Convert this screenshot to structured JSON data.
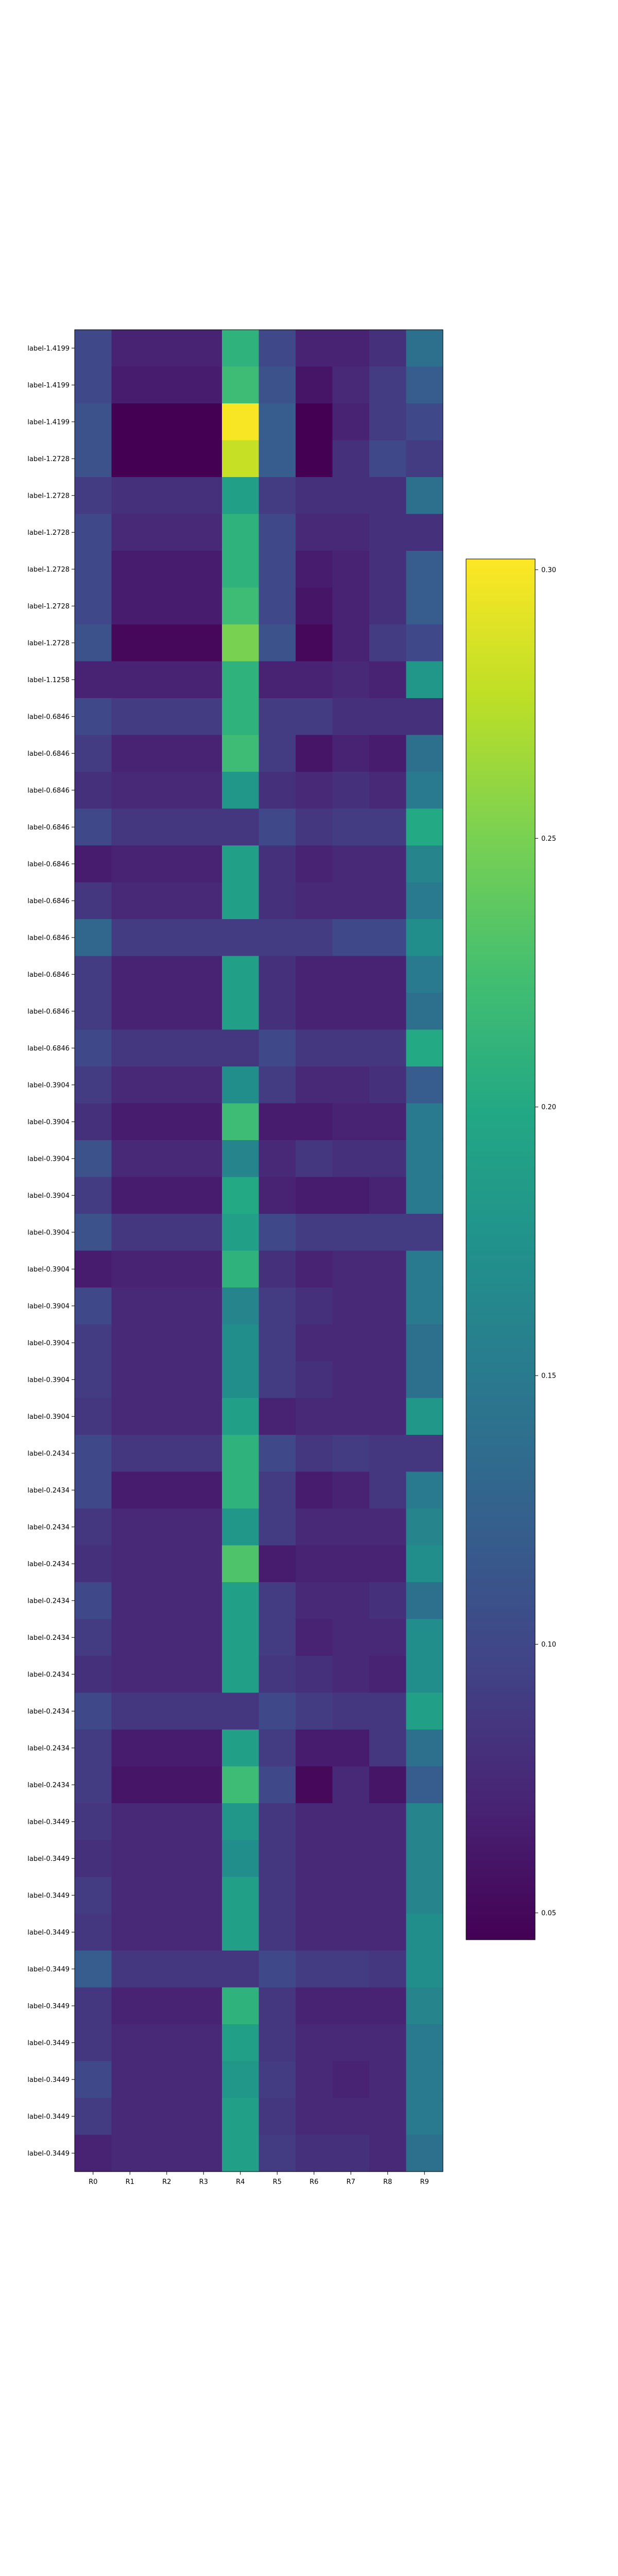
{
  "chart_data": {
    "type": "heatmap",
    "title": "",
    "xlabel": "",
    "ylabel": "",
    "x_categories": [
      "R0",
      "R1",
      "R2",
      "R3",
      "R4",
      "R5",
      "R6",
      "R7",
      "R8",
      "R9"
    ],
    "y_categories": [
      "label-1.4199",
      "label-1.4199",
      "label-1.4199",
      "label-1.2728",
      "label-1.2728",
      "label-1.2728",
      "label-1.2728",
      "label-1.2728",
      "label-1.2728",
      "label-1.1258",
      "label-0.6846",
      "label-0.6846",
      "label-0.6846",
      "label-0.6846",
      "label-0.6846",
      "label-0.6846",
      "label-0.6846",
      "label-0.6846",
      "label-0.6846",
      "label-0.6846",
      "label-0.3904",
      "label-0.3904",
      "label-0.3904",
      "label-0.3904",
      "label-0.3904",
      "label-0.3904",
      "label-0.3904",
      "label-0.3904",
      "label-0.3904",
      "label-0.3904",
      "label-0.2434",
      "label-0.2434",
      "label-0.2434",
      "label-0.2434",
      "label-0.2434",
      "label-0.2434",
      "label-0.2434",
      "label-0.2434",
      "label-0.2434",
      "label-0.2434",
      "label-0.3449",
      "label-0.3449",
      "label-0.3449",
      "label-0.3449",
      "label-0.3449",
      "label-0.3449",
      "label-0.3449",
      "label-0.3449",
      "label-0.3449",
      "label-0.3449"
    ],
    "values": [
      [
        0.1,
        0.07,
        0.07,
        0.07,
        0.21,
        0.1,
        0.07,
        0.07,
        0.08,
        0.14
      ],
      [
        0.1,
        0.065,
        0.065,
        0.065,
        0.22,
        0.11,
        0.06,
        0.075,
        0.09,
        0.12
      ],
      [
        0.11,
        0.045,
        0.045,
        0.045,
        0.3,
        0.12,
        0.045,
        0.07,
        0.09,
        0.1
      ],
      [
        0.11,
        0.045,
        0.045,
        0.045,
        0.28,
        0.12,
        0.045,
        0.08,
        0.1,
        0.09
      ],
      [
        0.09,
        0.08,
        0.08,
        0.08,
        0.19,
        0.09,
        0.08,
        0.08,
        0.08,
        0.14
      ],
      [
        0.1,
        0.075,
        0.075,
        0.075,
        0.21,
        0.1,
        0.075,
        0.075,
        0.08,
        0.08
      ],
      [
        0.1,
        0.065,
        0.065,
        0.065,
        0.21,
        0.1,
        0.065,
        0.07,
        0.08,
        0.12
      ],
      [
        0.1,
        0.065,
        0.065,
        0.065,
        0.22,
        0.1,
        0.06,
        0.07,
        0.08,
        0.12
      ],
      [
        0.11,
        0.05,
        0.05,
        0.05,
        0.25,
        0.11,
        0.05,
        0.07,
        0.09,
        0.1
      ],
      [
        0.07,
        0.07,
        0.07,
        0.07,
        0.21,
        0.07,
        0.07,
        0.075,
        0.07,
        0.18
      ],
      [
        0.1,
        0.09,
        0.09,
        0.09,
        0.21,
        0.09,
        0.09,
        0.08,
        0.08,
        0.08
      ],
      [
        0.09,
        0.07,
        0.07,
        0.07,
        0.22,
        0.09,
        0.06,
        0.07,
        0.065,
        0.14
      ],
      [
        0.08,
        0.075,
        0.075,
        0.075,
        0.18,
        0.08,
        0.075,
        0.08,
        0.075,
        0.15
      ],
      [
        0.1,
        0.085,
        0.085,
        0.085,
        0.085,
        0.1,
        0.085,
        0.09,
        0.09,
        0.2
      ],
      [
        0.065,
        0.07,
        0.07,
        0.07,
        0.19,
        0.08,
        0.07,
        0.075,
        0.075,
        0.16
      ],
      [
        0.085,
        0.075,
        0.075,
        0.075,
        0.19,
        0.08,
        0.075,
        0.075,
        0.075,
        0.15
      ],
      [
        0.13,
        0.09,
        0.09,
        0.09,
        0.09,
        0.09,
        0.09,
        0.1,
        0.1,
        0.17
      ],
      [
        0.09,
        0.07,
        0.07,
        0.07,
        0.19,
        0.08,
        0.07,
        0.07,
        0.07,
        0.15
      ],
      [
        0.09,
        0.07,
        0.07,
        0.07,
        0.19,
        0.08,
        0.07,
        0.07,
        0.07,
        0.14
      ],
      [
        0.1,
        0.085,
        0.085,
        0.085,
        0.085,
        0.1,
        0.085,
        0.085,
        0.085,
        0.2
      ],
      [
        0.09,
        0.075,
        0.075,
        0.075,
        0.17,
        0.09,
        0.075,
        0.075,
        0.08,
        0.12
      ],
      [
        0.08,
        0.065,
        0.065,
        0.065,
        0.22,
        0.065,
        0.065,
        0.07,
        0.07,
        0.15
      ],
      [
        0.11,
        0.075,
        0.075,
        0.075,
        0.16,
        0.075,
        0.085,
        0.08,
        0.08,
        0.15
      ],
      [
        0.09,
        0.065,
        0.065,
        0.065,
        0.2,
        0.07,
        0.065,
        0.065,
        0.07,
        0.15
      ],
      [
        0.11,
        0.085,
        0.085,
        0.085,
        0.19,
        0.1,
        0.09,
        0.09,
        0.09,
        0.09
      ],
      [
        0.065,
        0.07,
        0.07,
        0.07,
        0.21,
        0.08,
        0.07,
        0.075,
        0.075,
        0.15
      ],
      [
        0.1,
        0.075,
        0.075,
        0.075,
        0.16,
        0.09,
        0.08,
        0.075,
        0.075,
        0.15
      ],
      [
        0.09,
        0.075,
        0.075,
        0.075,
        0.17,
        0.09,
        0.075,
        0.075,
        0.075,
        0.14
      ],
      [
        0.09,
        0.075,
        0.075,
        0.075,
        0.17,
        0.09,
        0.08,
        0.075,
        0.075,
        0.14
      ],
      [
        0.085,
        0.075,
        0.075,
        0.075,
        0.19,
        0.07,
        0.075,
        0.075,
        0.075,
        0.18
      ],
      [
        0.1,
        0.085,
        0.085,
        0.085,
        0.21,
        0.1,
        0.085,
        0.09,
        0.085,
        0.085
      ],
      [
        0.1,
        0.065,
        0.065,
        0.065,
        0.21,
        0.09,
        0.065,
        0.07,
        0.085,
        0.15
      ],
      [
        0.085,
        0.075,
        0.075,
        0.075,
        0.18,
        0.09,
        0.075,
        0.075,
        0.075,
        0.16
      ],
      [
        0.08,
        0.075,
        0.075,
        0.075,
        0.23,
        0.065,
        0.07,
        0.07,
        0.07,
        0.17
      ],
      [
        0.1,
        0.075,
        0.075,
        0.075,
        0.19,
        0.09,
        0.075,
        0.075,
        0.08,
        0.14
      ],
      [
        0.09,
        0.075,
        0.075,
        0.075,
        0.19,
        0.09,
        0.07,
        0.075,
        0.075,
        0.17
      ],
      [
        0.08,
        0.075,
        0.075,
        0.075,
        0.19,
        0.085,
        0.08,
        0.075,
        0.07,
        0.17
      ],
      [
        0.1,
        0.085,
        0.085,
        0.085,
        0.085,
        0.1,
        0.09,
        0.085,
        0.085,
        0.19
      ],
      [
        0.09,
        0.065,
        0.065,
        0.065,
        0.19,
        0.09,
        0.065,
        0.065,
        0.085,
        0.14
      ],
      [
        0.09,
        0.06,
        0.06,
        0.06,
        0.22,
        0.1,
        0.05,
        0.075,
        0.06,
        0.12
      ],
      [
        0.085,
        0.075,
        0.075,
        0.075,
        0.18,
        0.085,
        0.075,
        0.075,
        0.075,
        0.16
      ],
      [
        0.08,
        0.075,
        0.075,
        0.075,
        0.17,
        0.085,
        0.075,
        0.075,
        0.075,
        0.16
      ],
      [
        0.09,
        0.075,
        0.075,
        0.075,
        0.19,
        0.085,
        0.075,
        0.075,
        0.075,
        0.16
      ],
      [
        0.085,
        0.075,
        0.075,
        0.075,
        0.19,
        0.085,
        0.075,
        0.075,
        0.075,
        0.17
      ],
      [
        0.12,
        0.085,
        0.085,
        0.085,
        0.085,
        0.1,
        0.09,
        0.09,
        0.085,
        0.17
      ],
      [
        0.085,
        0.07,
        0.07,
        0.07,
        0.21,
        0.085,
        0.07,
        0.07,
        0.07,
        0.16
      ],
      [
        0.085,
        0.075,
        0.075,
        0.075,
        0.19,
        0.085,
        0.075,
        0.075,
        0.075,
        0.15
      ],
      [
        0.1,
        0.075,
        0.075,
        0.075,
        0.18,
        0.09,
        0.075,
        0.07,
        0.075,
        0.15
      ],
      [
        0.09,
        0.075,
        0.075,
        0.075,
        0.19,
        0.085,
        0.075,
        0.075,
        0.075,
        0.15
      ],
      [
        0.07,
        0.075,
        0.075,
        0.075,
        0.19,
        0.09,
        0.08,
        0.08,
        0.075,
        0.14
      ]
    ],
    "colormap": "viridis",
    "vmin": 0.045,
    "vmax": 0.302,
    "colorbar": {
      "ticks": [
        0.05,
        0.1,
        0.15,
        0.2,
        0.25,
        0.3
      ],
      "tick_labels": [
        "0.05",
        "0.10",
        "0.15",
        "0.20",
        "0.25",
        "0.30"
      ]
    },
    "grid": false,
    "legend": "colorbar-right"
  }
}
